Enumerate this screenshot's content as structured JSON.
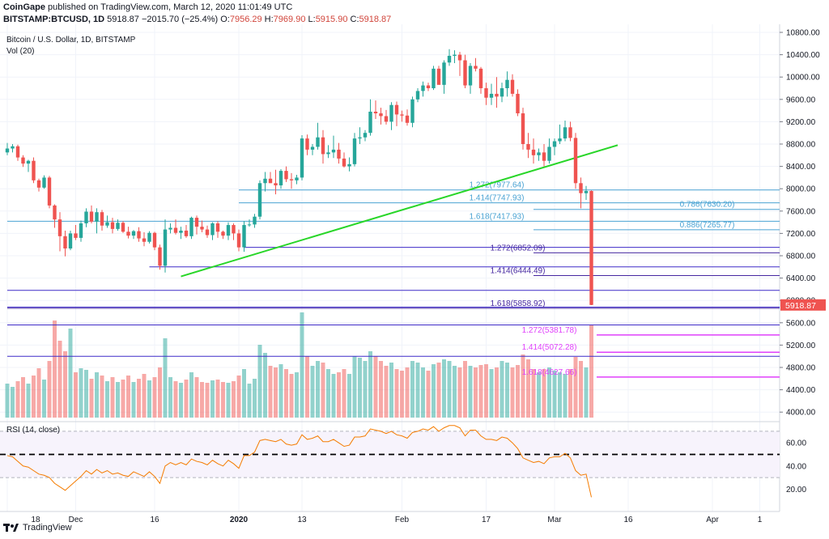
{
  "header": {
    "publisher": "CoinGape",
    "published_text": "published on TradingView.com, March 12, 2020 11:01:49 UTC",
    "symbol": "BITSTAMP:BTCUSD, 1D",
    "last": "5918.87",
    "change": "−2015.70 (−25.4%)",
    "o_label": "O:",
    "o_val": "7956.29",
    "h_label": "H:",
    "h_val": "7969.90",
    "l_label": "L:",
    "l_val": "5915.90",
    "c_label": "C:",
    "c_val": "5918.87"
  },
  "footer": {
    "brand": "TradingView"
  },
  "colors": {
    "up": "#26a69a",
    "down": "#ef5350",
    "trend": "#28d628",
    "fib_light": "#4aa3d3",
    "fib_mid": "#4527a0",
    "fib_magenta": "#e040fb",
    "rsi": "#f57c00",
    "price_tag": "#ef5350"
  },
  "chart_data": {
    "type": "candlestick",
    "title": "Bitcoin / U.S. Dollar, 1D, BITSTAMP",
    "volume_label": "Vol (20)",
    "rsi_label": "RSI (14, close)",
    "last_price_label": "5918.87",
    "y_ticks": [
      "10800.00",
      "10400.00",
      "10000.00",
      "9600.00",
      "9200.00",
      "8800.00",
      "8400.00",
      "8000.00",
      "7600.00",
      "7200.00",
      "6800.00",
      "6400.00",
      "6000.00",
      "5600.00",
      "5200.00",
      "4800.00",
      "4400.00",
      "4000.00"
    ],
    "rsi_ticks": [
      "60.00",
      "40.00",
      "20.00"
    ],
    "x_ticks": [
      {
        "label": "18",
        "day": 0
      },
      {
        "label": "Dec",
        "day": 13
      },
      {
        "label": "16",
        "day": 28
      },
      {
        "label": "2020",
        "day": 44
      },
      {
        "label": "13",
        "day": 56
      },
      {
        "label": "Feb",
        "day": 75
      },
      {
        "label": "17",
        "day": 91
      },
      {
        "label": "Mar",
        "day": 104
      },
      {
        "label": "16",
        "day": 118
      },
      {
        "label": "Apr",
        "day": 134
      },
      {
        "label": "1",
        "day": 143
      }
    ],
    "trend_line": {
      "from": {
        "day": 33,
        "price": 6430
      },
      "to": {
        "day": 116,
        "price": 8780
      }
    },
    "fib_levels": [
      {
        "label": "1.272(7977.64)",
        "price": 7977.64,
        "group": "light",
        "text_day": 93,
        "from_day": 44
      },
      {
        "label": "1.414(7747.93)",
        "price": 7747.93,
        "group": "light",
        "text_day": 93,
        "from_day": 44
      },
      {
        "label": "1.618(7417.93)",
        "price": 7417.93,
        "group": "light",
        "text_day": 93,
        "from_day": 0
      },
      {
        "label": "0.786(7630.20)",
        "price": 7630.2,
        "group": "light",
        "text_day": 133,
        "from_day": 100
      },
      {
        "label": "0.886(7265.77)",
        "price": 7265.77,
        "group": "light",
        "text_day": 133,
        "from_day": 100
      },
      {
        "label": "1.272(6852.09)",
        "price": 6852.09,
        "group": "mid",
        "text_day": 97,
        "from_day": 100
      },
      {
        "label": "1.414(6444.49)",
        "price": 6444.49,
        "group": "mid",
        "text_day": 97,
        "from_day": 100
      },
      {
        "label": "1.618(5858.92)",
        "price": 5858.92,
        "group": "mid",
        "text_day": 97,
        "from_day": 0
      },
      {
        "label": "1.272(5381.78)",
        "price": 5381.78,
        "group": "magenta",
        "text_day": 103,
        "from_day": 112
      },
      {
        "label": "1.414(5072.28)",
        "price": 5072.28,
        "group": "magenta",
        "text_day": 103,
        "from_day": 112
      },
      {
        "label": "1.618(4627.66)",
        "price": 4627.66,
        "group": "magenta",
        "text_day": 103,
        "from_day": 112
      }
    ],
    "h_lines": [
      {
        "price": 6950,
        "from_day": 45
      },
      {
        "price": 6600,
        "from_day": 27
      },
      {
        "price": 6180,
        "from_day": 0
      },
      {
        "price": 5880,
        "from_day": 0
      },
      {
        "price": 5560,
        "from_day": 0
      },
      {
        "price": 5000,
        "from_day": 0
      }
    ],
    "candles": [
      [
        8650,
        8820,
        8600,
        8720,
        420
      ],
      [
        8720,
        8800,
        8650,
        8760,
        380
      ],
      [
        8760,
        8790,
        8500,
        8560,
        450
      ],
      [
        8560,
        8600,
        8390,
        8450,
        500
      ],
      [
        8450,
        8520,
        8300,
        8500,
        420
      ],
      [
        8500,
        8560,
        8100,
        8150,
        520
      ],
      [
        8150,
        8180,
        7950,
        8020,
        610
      ],
      [
        8020,
        8240,
        8000,
        8200,
        470
      ],
      [
        8200,
        8230,
        7650,
        7700,
        700
      ],
      [
        7700,
        7720,
        7300,
        7450,
        1200
      ],
      [
        7450,
        7580,
        6880,
        7150,
        950
      ],
      [
        7150,
        7250,
        6790,
        6930,
        820
      ],
      [
        6930,
        7250,
        6900,
        7200,
        1100
      ],
      [
        7200,
        7350,
        7080,
        7120,
        560
      ],
      [
        7120,
        7430,
        7050,
        7380,
        610
      ],
      [
        7380,
        7650,
        7310,
        7590,
        590
      ],
      [
        7590,
        7700,
        7380,
        7410,
        480
      ],
      [
        7410,
        7650,
        7200,
        7580,
        560
      ],
      [
        7580,
        7620,
        7250,
        7340,
        520
      ],
      [
        7340,
        7520,
        7300,
        7400,
        450
      ],
      [
        7400,
        7480,
        7200,
        7280,
        500
      ],
      [
        7280,
        7450,
        7250,
        7390,
        440
      ],
      [
        7390,
        7420,
        7210,
        7230,
        470
      ],
      [
        7230,
        7320,
        7110,
        7160,
        520
      ],
      [
        7160,
        7260,
        7100,
        7240,
        440
      ],
      [
        7240,
        7310,
        7050,
        7110,
        480
      ],
      [
        7110,
        7220,
        6970,
        7050,
        540
      ],
      [
        7050,
        7240,
        7020,
        7210,
        460
      ],
      [
        7210,
        7230,
        6900,
        6950,
        500
      ],
      [
        6950,
        7000,
        6550,
        6620,
        620
      ],
      [
        6620,
        7450,
        6500,
        7270,
        980
      ],
      [
        7270,
        7380,
        7200,
        7300,
        500
      ],
      [
        7300,
        7450,
        7180,
        7210,
        450
      ],
      [
        7210,
        7320,
        7100,
        7250,
        430
      ],
      [
        7250,
        7350,
        7120,
        7150,
        470
      ],
      [
        7150,
        7500,
        7100,
        7480,
        560
      ],
      [
        7480,
        7520,
        7180,
        7320,
        500
      ],
      [
        7320,
        7430,
        7220,
        7270,
        440
      ],
      [
        7270,
        7340,
        7120,
        7170,
        430
      ],
      [
        7170,
        7400,
        7080,
        7380,
        460
      ],
      [
        7380,
        7420,
        7120,
        7230,
        470
      ],
      [
        7230,
        7250,
        7100,
        7160,
        440
      ],
      [
        7160,
        7400,
        7080,
        7350,
        430
      ],
      [
        7350,
        7380,
        7080,
        7200,
        450
      ],
      [
        7200,
        7270,
        6880,
        6950,
        520
      ],
      [
        6950,
        7420,
        6870,
        7350,
        600
      ],
      [
        7350,
        7450,
        7320,
        7360,
        420
      ],
      [
        7360,
        7550,
        7300,
        7500,
        480
      ],
      [
        7500,
        8150,
        7450,
        8100,
        900
      ],
      [
        8100,
        8300,
        7950,
        8180,
        800
      ],
      [
        8180,
        8300,
        8100,
        8100,
        640
      ],
      [
        8100,
        8340,
        7900,
        8060,
        620
      ],
      [
        8060,
        8350,
        8000,
        8320,
        660
      ],
      [
        8320,
        8400,
        8120,
        8170,
        600
      ],
      [
        8170,
        8280,
        8000,
        8150,
        540
      ],
      [
        8150,
        8250,
        8080,
        8200,
        560
      ],
      [
        8200,
        8960,
        8150,
        8900,
        1300
      ],
      [
        8900,
        8970,
        8600,
        8700,
        760
      ],
      [
        8700,
        8800,
        8600,
        8750,
        640
      ],
      [
        8750,
        9180,
        8700,
        8920,
        700
      ],
      [
        8920,
        9050,
        8450,
        8620,
        680
      ],
      [
        8620,
        8780,
        8550,
        8650,
        600
      ],
      [
        8650,
        8950,
        8550,
        8700,
        540
      ],
      [
        8700,
        8820,
        8450,
        8540,
        560
      ],
      [
        8540,
        8650,
        8380,
        8400,
        600
      ],
      [
        8400,
        8560,
        8310,
        8440,
        540
      ],
      [
        8440,
        9000,
        8400,
        8900,
        760
      ],
      [
        8900,
        9100,
        8800,
        8920,
        740
      ],
      [
        8920,
        9050,
        8850,
        9000,
        700
      ],
      [
        9000,
        9600,
        8950,
        9380,
        820
      ],
      [
        9380,
        9580,
        9250,
        9350,
        760
      ],
      [
        9350,
        9450,
        9150,
        9300,
        700
      ],
      [
        9300,
        9410,
        9150,
        9200,
        640
      ],
      [
        9200,
        9550,
        9050,
        9500,
        680
      ],
      [
        9500,
        9560,
        9120,
        9330,
        600
      ],
      [
        9330,
        9400,
        9200,
        9310,
        580
      ],
      [
        9310,
        9420,
        9130,
        9180,
        620
      ],
      [
        9180,
        9650,
        9100,
        9600,
        700
      ],
      [
        9600,
        9800,
        9550,
        9750,
        680
      ],
      [
        9750,
        9920,
        9650,
        9850,
        620
      ],
      [
        9850,
        9900,
        9750,
        9800,
        580
      ],
      [
        9800,
        10200,
        9770,
        10150,
        660
      ],
      [
        10150,
        10200,
        9900,
        9860,
        680
      ],
      [
        9860,
        10300,
        9700,
        10260,
        720
      ],
      [
        10260,
        10500,
        10200,
        10380,
        700
      ],
      [
        10380,
        10480,
        10250,
        10400,
        640
      ],
      [
        10400,
        10450,
        10020,
        10300,
        620
      ],
      [
        10300,
        10400,
        9800,
        9850,
        700
      ],
      [
        9850,
        10250,
        9700,
        10200,
        640
      ],
      [
        10200,
        10340,
        10100,
        10150,
        620
      ],
      [
        10150,
        10180,
        9700,
        9800,
        650
      ],
      [
        9800,
        9900,
        9500,
        9630,
        660
      ],
      [
        9630,
        9880,
        9500,
        9700,
        600
      ],
      [
        9700,
        10000,
        9450,
        9650,
        620
      ],
      [
        9650,
        9900,
        9550,
        9800,
        700
      ],
      [
        9800,
        10100,
        9650,
        9950,
        680
      ],
      [
        9950,
        10050,
        9650,
        9700,
        620
      ],
      [
        9700,
        9780,
        9300,
        9350,
        650
      ],
      [
        9350,
        9450,
        8700,
        8800,
        780
      ],
      [
        8800,
        9000,
        8550,
        8700,
        720
      ],
      [
        8700,
        8900,
        8450,
        8600,
        600
      ],
      [
        8600,
        8720,
        8500,
        8650,
        560
      ],
      [
        8650,
        8800,
        8400,
        8500,
        600
      ],
      [
        8500,
        8900,
        8450,
        8750,
        620
      ],
      [
        8750,
        8900,
        8600,
        8850,
        580
      ],
      [
        8850,
        9150,
        8800,
        8900,
        560
      ],
      [
        8900,
        9220,
        8850,
        9100,
        540
      ],
      [
        9100,
        9200,
        8850,
        8910,
        600
      ],
      [
        8910,
        9000,
        8000,
        8100,
        750
      ],
      [
        8100,
        8200,
        7650,
        7920,
        700
      ],
      [
        7920,
        8050,
        7800,
        7960,
        620
      ],
      [
        7960,
        7970,
        5916,
        5919,
        1150
      ]
    ],
    "rsi": [
      49,
      48,
      44,
      40,
      39,
      36,
      33,
      32,
      30,
      25,
      22,
      19,
      23,
      27,
      31,
      36,
      33,
      37,
      34,
      36,
      33,
      34,
      32,
      31,
      35,
      33,
      31,
      35,
      31,
      25,
      40,
      43,
      41,
      43,
      41,
      46,
      44,
      43,
      41,
      45,
      42,
      40,
      45,
      42,
      38,
      49,
      49,
      52,
      62,
      63,
      62,
      61,
      63,
      59,
      58,
      59,
      67,
      63,
      64,
      66,
      61,
      61,
      63,
      60,
      57,
      58,
      65,
      65,
      66,
      72,
      71,
      70,
      68,
      70,
      67,
      66,
      64,
      69,
      70,
      72,
      71,
      74,
      70,
      73,
      75,
      75,
      73,
      66,
      71,
      71,
      66,
      63,
      63,
      62,
      65,
      64,
      60,
      55,
      47,
      45,
      43,
      44,
      42,
      47,
      48,
      48,
      51,
      47,
      36,
      32,
      33,
      13
    ]
  }
}
